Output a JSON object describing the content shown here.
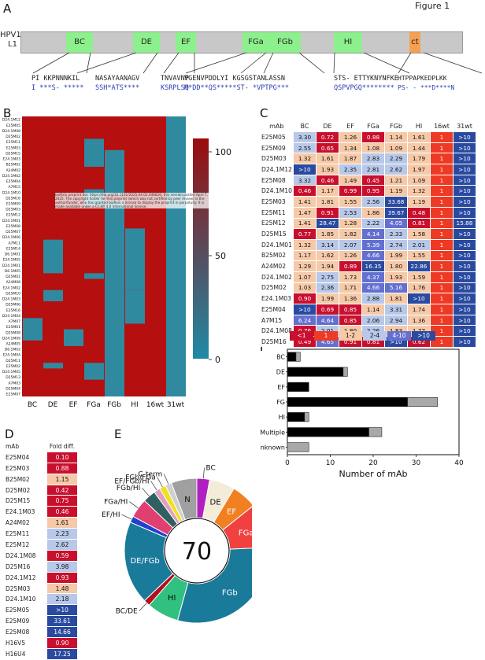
{
  "figure_title": "Figure 1",
  "panels": {
    "a": "A",
    "b": "B",
    "c": "C",
    "d": "D",
    "e": "E",
    "f": "F"
  },
  "panel_a": {
    "protein": "HPV16",
    "protein2": "L1",
    "loops": [
      {
        "label": "BC",
        "color": "#8cf08c"
      },
      {
        "label": "DE",
        "color": "#8cf08c"
      },
      {
        "label": "EF",
        "color": "#8cf08c"
      },
      {
        "label": "FGa",
        "color": "#8cf08c"
      },
      {
        "label": "FGb",
        "color": "#8cf08c"
      },
      {
        "label": "HI",
        "color": "#8cf08c"
      },
      {
        "label": "ct",
        "color": "#f5a050"
      }
    ],
    "sequences": [
      {
        "seq": "PI KKPNNNKIL",
        "mut": "I ***S- *****"
      },
      {
        "seq": "NASAYAANAGV",
        "mut": "SSH*ATS****"
      },
      {
        "seq": "TNVAVNP",
        "mut": "KSRPLSQ"
      },
      {
        "seq": "VGENVPDDLYI KGSGSTANLASSN",
        "mut": "M*DD**QS*****ST- *VPTPG***"
      },
      {
        "seq": "STS- ETTYKNYNFKE",
        "mut": "QSPVPGQ********"
      },
      {
        "seq": "HTPPAPKEDPLKK",
        "mut": "PS- - ***D****N"
      }
    ]
  },
  "panel_b": {
    "columns": [
      "BC",
      "DE",
      "EF",
      "FGa",
      "FGb",
      "HI",
      "16wt",
      "31wt"
    ],
    "colorbar_ticks": [
      "100",
      "50",
      "0"
    ],
    "row_labels": [
      "D24.1M12",
      "E25M05",
      "D24.1M08",
      "D25M02",
      "E25M11",
      "E25M03",
      "D25M15",
      "E24.1M03",
      "B25M02",
      "A24M02",
      "D24.1M02",
      "E25M04",
      "A7M15",
      "D24.1M10",
      "D25M16",
      "E25M09",
      "D25M03",
      "E25M12",
      "D24.1M01",
      "E25M08",
      "D25M07",
      "D24.1M06",
      "A7M11",
      "E25M14",
      "D6.1M01",
      "E24.1M05",
      "D24.1M01",
      "D6.1M05",
      "D25M01",
      "A24M08",
      "E24.1M02",
      "D25M10",
      "D24.1M03",
      "D25M06",
      "E25M16",
      "D24.1M04",
      "A7M07",
      "E25M01",
      "D25M08",
      "D24.1M09",
      "A24M05",
      "D6.1M02",
      "E24.1M04",
      "D25M11",
      "E25M02",
      "D24.1M05",
      "D25M13",
      "A7M03",
      "D25M04",
      "E25M07"
    ],
    "watermark": "bioRxiv preprint doi: https://doi.org/10.1101/2025.04.02.646826; this version posted April 7, 2025. The copyright holder for this preprint (which was not certified by peer review) is the author/funder, who has granted bioRxiv a license to display the preprint in perpetuity. It is made available under a CC-BY 4.0 International license."
  },
  "panel_c": {
    "header": [
      "mAb",
      "BC",
      "DE",
      "EF",
      "FGa",
      "FGb",
      "HI",
      "16wt",
      "31wt"
    ],
    "rows": [
      [
        "E25M05",
        "3.30",
        "0.72",
        "1.26",
        "0.88",
        "1.14",
        "1.61",
        "1",
        ">10"
      ],
      [
        "E25M09",
        "2.55",
        "0.65",
        "1.34",
        "1.08",
        "1.09",
        "1.44",
        "1",
        ">10"
      ],
      [
        "D25M03",
        "1.32",
        "1.61",
        "1.87",
        "2.83",
        "2.29",
        "1.79",
        "1",
        ">10"
      ],
      [
        "D24.1M12",
        ">10",
        "1.93",
        "2.35",
        "2.81",
        "2.62",
        "1.97",
        "1",
        ">10"
      ],
      [
        "E25M08",
        "3.32",
        "0.46",
        "1.49",
        "0.45",
        "1.21",
        "1.09",
        "1",
        ">10"
      ],
      [
        "D24.1M10",
        "0.46",
        "1.17",
        "0.99",
        "0.95",
        "1.19",
        "1.32",
        "1",
        ">10"
      ],
      [
        "E25M03",
        "1.41",
        "1.81",
        "1.55",
        "2.56",
        "33.68",
        "1.19",
        "1",
        ">10"
      ],
      [
        "E25M11",
        "1.47",
        "0.91",
        "2.53",
        "1.86",
        "39.67",
        "0.48",
        "1",
        ">10"
      ],
      [
        "E25M12",
        "1.41",
        "28.47",
        "1.28",
        "2.22",
        "4.05",
        "0.81",
        "1",
        "15.88"
      ],
      [
        "D25M15",
        "0.77",
        "1.85",
        "1.82",
        "4.14",
        "2.33",
        "1.58",
        "1",
        ">10"
      ],
      [
        "D24.1M01",
        "1.32",
        "3.14",
        "2.07",
        "5.39",
        "2.74",
        "2.01",
        "1",
        ">10"
      ],
      [
        "B25M02",
        "1.17",
        "1.62",
        "1.26",
        "4.66",
        "1.99",
        "1.55",
        "1",
        ">10"
      ],
      [
        "A24M02",
        "1.29",
        "1.94",
        "0.89",
        "16.35",
        "1.80",
        "22.86",
        "1",
        ">10"
      ],
      [
        "D24.1M02",
        "1.07",
        "2.75",
        "1.73",
        "4.37",
        "1.93",
        "1.59",
        "1",
        ">10"
      ],
      [
        "D25M02",
        "1.03",
        "2.36",
        "1.71",
        "4.66",
        "5.16",
        "1.76",
        "1",
        ">10"
      ],
      [
        "E24.1M03",
        "0.90",
        "1.99",
        "1.36",
        "2.88",
        "1.81",
        ">10",
        "1",
        ">10"
      ],
      [
        "E25M04",
        ">10",
        "0.69",
        "0.85",
        "1.14",
        "3.31",
        "1.74",
        "1",
        ">10"
      ],
      [
        "A7M15",
        "6.24",
        "4.64",
        "0.85",
        "2.06",
        "2.94",
        "1.36",
        "1",
        ">10"
      ],
      [
        "D24.1M08",
        "0.76",
        "2.01",
        "1.80",
        "2.26",
        "1.83",
        "1.77",
        "1",
        ">10"
      ],
      [
        "D25M16",
        "0.49",
        "4.65",
        "0.91",
        "0.81",
        ">10",
        "0.62",
        "1",
        ">10"
      ]
    ],
    "legend": [
      "<1",
      "1",
      "1-2",
      "2-4",
      "4-10",
      ">10"
    ],
    "legend_colors": [
      "#c8102e",
      "#ee3a24",
      "#f6c9a8",
      "#b8c8e8",
      "#6470d0",
      "#2a4aa0"
    ]
  },
  "panel_d": {
    "header": [
      "mAb",
      "Fold diff."
    ],
    "rows": [
      [
        "E25M04",
        "0.10"
      ],
      [
        "E25M03",
        "0.88"
      ],
      [
        "B25M02",
        "1.15"
      ],
      [
        "D25M02",
        "0.42"
      ],
      [
        "D25M15",
        "0.75"
      ],
      [
        "E24.1M03",
        "0.46"
      ],
      [
        "A24M02",
        "1.61"
      ],
      [
        "E25M11",
        "2.23"
      ],
      [
        "E25M12",
        "2.62"
      ],
      [
        "D24.1M08",
        "0.59"
      ],
      [
        "D25M16",
        "3.98"
      ],
      [
        "D24.1M12",
        "0.93"
      ],
      [
        "D25M03",
        "1.48"
      ],
      [
        "D24.1M10",
        "2.18"
      ],
      [
        "E25M05",
        ">10"
      ],
      [
        "E25M09",
        "33.61"
      ],
      [
        "E25M08",
        "14.66"
      ],
      [
        "H16V5",
        "0.90"
      ],
      [
        "H16U4",
        "17.25"
      ]
    ]
  },
  "panel_e": {
    "center": "70",
    "segments": [
      {
        "label": "BC",
        "value": 2,
        "color": "#b020c0"
      },
      {
        "label": "DE",
        "value": 4,
        "color": "#f3ecd8"
      },
      {
        "label": "EF",
        "value": 4,
        "color": "#f08020"
      },
      {
        "label": "FGa",
        "value": 7,
        "color": "#f04040"
      },
      {
        "label": "FGb",
        "value": 21,
        "color": "#1a7a9a"
      },
      {
        "label": "HI",
        "value": 5,
        "color": "#30c080"
      },
      {
        "label": "BC/DE",
        "value": 1,
        "color": "#b01020"
      },
      {
        "label": "DE/FGb",
        "value": 13,
        "color": "#1a7a9a"
      },
      {
        "label": "EF/HI",
        "value": 1,
        "color": "#2040d0"
      },
      {
        "label": "FGa/HI",
        "value": 3,
        "color": "#e04070"
      },
      {
        "label": "FGb/HI",
        "value": 2,
        "color": "#306060"
      },
      {
        "label": "EF/FGb/HI",
        "value": 1,
        "color": "#e0a0c0"
      },
      {
        "label": "FGb/FGa",
        "value": 1,
        "color": "#f0e020"
      },
      {
        "label": "C-term",
        "value": 1,
        "color": "#d0d0d0"
      },
      {
        "label": "N",
        "value": 4,
        "color": "#a0a0a0"
      }
    ]
  },
  "chart_data": {
    "type": "bar",
    "categories": [
      "BC",
      "DE",
      "EF",
      "FG",
      "HI",
      "Multiple",
      "Unknown"
    ],
    "series": [
      {
        "values": [
          2,
          13,
          5,
          28,
          4,
          19,
          0
        ]
      },
      {
        "values": [
          1,
          1,
          0,
          7,
          1,
          3,
          5
        ]
      }
    ],
    "xlabel": "Number of mAb",
    "xlim": [
      0,
      40
    ],
    "xticks": [
      "0",
      "10",
      "20",
      "30",
      "40"
    ]
  }
}
